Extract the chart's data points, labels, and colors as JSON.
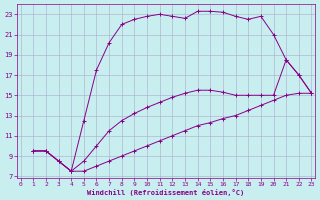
{
  "xlabel": "Windchill (Refroidissement éolien,°C)",
  "bg_color": "#c8eef0",
  "grid_color": "#aaaacc",
  "line_color": "#880088",
  "xmin": 0,
  "xmax": 23,
  "ymin": 7,
  "ymax": 24,
  "yticks": [
    7,
    9,
    11,
    13,
    15,
    17,
    19,
    21,
    23
  ],
  "xticks": [
    0,
    1,
    2,
    3,
    4,
    5,
    6,
    7,
    8,
    9,
    10,
    11,
    12,
    13,
    14,
    15,
    16,
    17,
    18,
    19,
    20,
    21,
    22,
    23
  ],
  "curve_top_x": [
    1,
    2,
    3,
    4,
    5,
    6,
    7,
    8,
    9,
    10,
    11,
    12,
    13,
    14,
    15,
    16,
    17,
    18,
    19,
    20,
    21,
    22,
    23
  ],
  "curve_top_y": [
    9.5,
    9.5,
    8.5,
    7.5,
    12.5,
    17.5,
    20.2,
    22.0,
    22.5,
    22.8,
    23.0,
    22.8,
    22.6,
    23.3,
    23.3,
    23.2,
    22.8,
    22.5,
    22.8,
    21.0,
    18.5,
    17.0,
    15.2
  ],
  "curve_mid_x": [
    1,
    2,
    3,
    4,
    5,
    6,
    7,
    8,
    9,
    10,
    11,
    12,
    13,
    14,
    15,
    16,
    17,
    18,
    19,
    20,
    21,
    22,
    23
  ],
  "curve_mid_y": [
    9.5,
    9.5,
    8.5,
    7.5,
    8.5,
    10.0,
    11.5,
    12.5,
    13.2,
    13.8,
    14.3,
    14.8,
    15.2,
    15.5,
    15.5,
    15.3,
    15.0,
    15.0,
    15.0,
    15.0,
    18.5,
    17.0,
    15.2
  ],
  "curve_bot_x": [
    1,
    2,
    3,
    4,
    5,
    6,
    7,
    8,
    9,
    10,
    11,
    12,
    13,
    14,
    15,
    16,
    17,
    18,
    19,
    20,
    21,
    22,
    23
  ],
  "curve_bot_y": [
    9.5,
    9.5,
    8.5,
    7.5,
    7.5,
    8.0,
    8.5,
    9.0,
    9.5,
    10.0,
    10.5,
    11.0,
    11.5,
    12.0,
    12.3,
    12.7,
    13.0,
    13.5,
    14.0,
    14.5,
    15.0,
    15.2,
    15.2
  ]
}
